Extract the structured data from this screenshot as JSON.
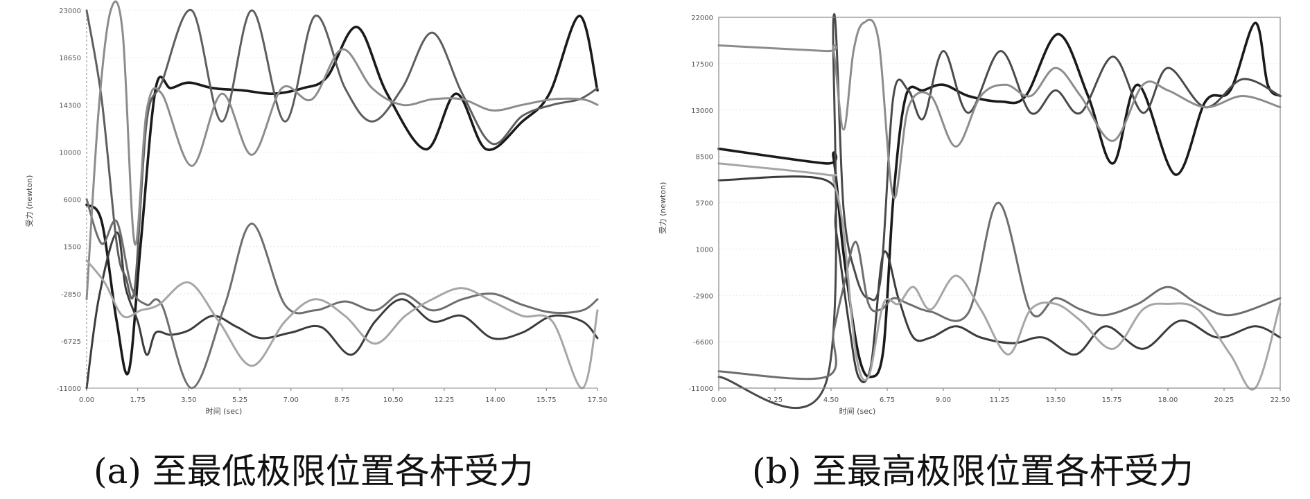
{
  "chart_data": [
    {
      "type": "line",
      "caption": "(a) 至最低极限位置各杆受力",
      "xlabel": "时间 (sec)",
      "ylabel": "受力 (newton)",
      "xlim": [
        0,
        17
      ],
      "ylim": [
        -11000,
        23000
      ],
      "x_ticks": [
        "0.00",
        "1.75",
        "3.50",
        "5.25",
        "7.00",
        "8.75",
        "10.50",
        "12.25",
        "14.00",
        "15.75",
        "17.50"
      ],
      "y_ticks": [
        "23000",
        "18650",
        "14300",
        "10000",
        "6000",
        "1500",
        "-2850",
        "-6725",
        "-11000"
      ],
      "series": [
        {
          "color": "#1a1a1a",
          "width": 3.6,
          "x": [
            0,
            0.5,
            1.0,
            1.4,
            1.8,
            2.3,
            2.8,
            3.4,
            4.2,
            5.2,
            6.2,
            7.2,
            8.0,
            9.0,
            10.0,
            11.3,
            12.3,
            13.3,
            14.5,
            15.4,
            16.4,
            17.0
          ],
          "y": [
            5500,
            4000,
            -5000,
            -9500,
            2000,
            16000,
            16000,
            16500,
            16000,
            15800,
            15500,
            16000,
            17000,
            21500,
            15500,
            10500,
            15500,
            10500,
            13000,
            15500,
            22500,
            15800
          ]
        },
        {
          "color": "#3c3c3c",
          "width": 3.0,
          "x": [
            0,
            0.4,
            1.0,
            1.3,
            1.7,
            2.0,
            2.3,
            2.8,
            3.4,
            4.2,
            5.0,
            5.8,
            6.8,
            7.8,
            8.8,
            9.6,
            10.5,
            11.5,
            12.5,
            13.5,
            14.5,
            15.5,
            16.5,
            17.0
          ],
          "y": [
            -11000,
            -3000,
            3000,
            -2000,
            -5000,
            -8000,
            -6000,
            -6200,
            -5800,
            -4500,
            -5500,
            -6500,
            -6000,
            -5500,
            -8000,
            -5000,
            -3000,
            -5000,
            -4500,
            -6500,
            -6000,
            -4500,
            -5000,
            -6500
          ]
        },
        {
          "color": "#5e5e5e",
          "width": 3.0,
          "x": [
            0,
            0.5,
            1.0,
            1.3,
            1.6,
            2.0,
            2.5,
            3.5,
            4.5,
            5.5,
            6.6,
            7.6,
            8.6,
            9.5,
            10.5,
            11.5,
            12.5,
            13.5,
            14.5,
            15.5,
            16.4,
            17.0
          ],
          "y": [
            23000,
            15000,
            2000,
            -1000,
            -2000,
            13000,
            16500,
            23000,
            13000,
            23000,
            13000,
            22500,
            16000,
            13000,
            16000,
            21000,
            15500,
            11000,
            13500,
            14500,
            15000,
            16000
          ]
        },
        {
          "color": "#6e6e6e",
          "width": 3.0,
          "x": [
            0,
            0.5,
            1.0,
            1.5,
            2.0,
            2.5,
            3.5,
            4.6,
            5.5,
            6.6,
            7.6,
            8.6,
            9.6,
            10.5,
            11.5,
            12.5,
            13.5,
            14.5,
            15.5,
            16.5,
            17.0
          ],
          "y": [
            6000,
            2000,
            4000,
            -2000,
            -3500,
            -3500,
            -11000,
            -3500,
            3800,
            -3500,
            -4000,
            -3200,
            -4000,
            -2500,
            -4000,
            -3000,
            -2500,
            -3500,
            -4200,
            -4000,
            -3000
          ]
        },
        {
          "color": "#8c8c8c",
          "width": 3.0,
          "x": [
            0,
            0.4,
            0.8,
            1.2,
            1.6,
            2.0,
            2.5,
            3.5,
            4.5,
            5.5,
            6.5,
            7.5,
            8.5,
            9.5,
            10.5,
            11.5,
            12.5,
            13.5,
            14.5,
            15.5,
            16.5,
            17.0
          ],
          "y": [
            -3000,
            14000,
            23000,
            21000,
            2000,
            14000,
            15500,
            9000,
            15500,
            10000,
            16000,
            15000,
            19500,
            16000,
            14500,
            15000,
            15000,
            14000,
            14500,
            15000,
            15000,
            14500
          ]
        },
        {
          "color": "#a6a6a6",
          "width": 3.0,
          "x": [
            0,
            0.6,
            1.2,
            1.8,
            2.4,
            3.4,
            4.4,
            5.5,
            6.6,
            7.6,
            8.6,
            9.6,
            10.6,
            11.5,
            12.5,
            13.5,
            14.5,
            15.5,
            16.5,
            17.0
          ],
          "y": [
            500,
            -1500,
            -4500,
            -4000,
            -3500,
            -1500,
            -5000,
            -9000,
            -5000,
            -3000,
            -4500,
            -7000,
            -4500,
            -3000,
            -2000,
            -3200,
            -4500,
            -5000,
            -11000,
            -4000
          ]
        }
      ]
    },
    {
      "type": "line",
      "caption": "(b) 至最高极限位置各杆受力",
      "xlabel": "时间 (sec)",
      "ylabel": "受力 (newton)",
      "xlim": [
        0,
        22.5
      ],
      "ylim": [
        -11000,
        22000
      ],
      "x_ticks": [
        "0.00",
        "2.25",
        "4.50",
        "6.75",
        "9.00",
        "11.25",
        "13.50",
        "15.75",
        "18.00",
        "20.25",
        "22.50"
      ],
      "y_ticks": [
        "22000",
        "17500",
        "13000",
        "8500",
        "5700",
        "1000",
        "-2900",
        "-6600",
        "-11000"
      ],
      "series": [
        {
          "color": "#1a1a1a",
          "width": 3.6,
          "x": [
            0,
            4.3,
            4.6,
            5.0,
            5.6,
            6.1,
            6.6,
            7.0,
            7.5,
            8.2,
            9.0,
            10.0,
            11.3,
            12.3,
            13.6,
            14.8,
            15.8,
            16.8,
            18.3,
            19.5,
            20.5,
            21.5,
            22.0,
            22.5
          ],
          "y": [
            10300,
            9000,
            9500,
            1000,
            -8000,
            -10000,
            -7500,
            6000,
            15000,
            15500,
            16000,
            15000,
            14500,
            15000,
            20500,
            15000,
            9000,
            16000,
            8000,
            14500,
            15500,
            21500,
            16000,
            15000
          ]
        },
        {
          "color": "#3c3c3c",
          "width": 3.0,
          "x": [
            0,
            4.3,
            4.7,
            5.2,
            5.6,
            6.1,
            6.6,
            7.2,
            7.8,
            8.5,
            9.5,
            10.5,
            11.8,
            13.0,
            14.3,
            15.5,
            17.0,
            18.5,
            20.0,
            21.5,
            22.5
          ],
          "y": [
            7500,
            7500,
            3000,
            -5000,
            -10000,
            -9000,
            1000,
            -3000,
            -6500,
            -6500,
            -5500,
            -6500,
            -7000,
            -6500,
            -8000,
            -5500,
            -7500,
            -5000,
            -6500,
            -5500,
            -6500
          ]
        },
        {
          "color": "#4a4a4a",
          "width": 3.0,
          "x": [
            0,
            4.3,
            4.6,
            5.0,
            5.5,
            6.0,
            6.5,
            7.0,
            7.6,
            8.2,
            9.0,
            10.0,
            11.3,
            12.5,
            13.5,
            14.5,
            15.8,
            17.0,
            18.0,
            19.5,
            21.0,
            22.5
          ],
          "y": [
            -10000,
            -10500,
            22000,
            5000,
            -1000,
            -3000,
            -1000,
            15000,
            15500,
            13000,
            19000,
            13500,
            19000,
            13500,
            15500,
            13500,
            18500,
            13500,
            17500,
            14000,
            16500,
            15000
          ]
        },
        {
          "color": "#6e6e6e",
          "width": 3.0,
          "x": [
            0,
            4.3,
            4.6,
            5.0,
            5.5,
            6.0,
            6.5,
            7.0,
            7.6,
            8.5,
            10.0,
            11.2,
            12.5,
            13.5,
            14.5,
            15.5,
            16.8,
            18.0,
            19.2,
            20.5,
            22.5
          ],
          "y": [
            -9500,
            -10000,
            -6000,
            -2000,
            2000,
            -3500,
            -4000,
            -3000,
            -3500,
            -4200,
            -4300,
            5500,
            -4200,
            -3000,
            -4000,
            -4500,
            -3500,
            -2000,
            -3500,
            -4500,
            -3000
          ]
        },
        {
          "color": "#8c8c8c",
          "width": 3.0,
          "x": [
            0,
            4.3,
            4.6,
            5.0,
            5.4,
            5.8,
            6.4,
            7.0,
            7.6,
            8.5,
            9.5,
            10.5,
            11.5,
            12.5,
            13.5,
            14.5,
            15.8,
            17.0,
            18.0,
            19.5,
            21.0,
            22.5
          ],
          "y": [
            19500,
            19000,
            19000,
            12000,
            19000,
            21500,
            20000,
            6000,
            14000,
            15000,
            10500,
            15000,
            16000,
            15000,
            17500,
            15000,
            11000,
            16000,
            15500,
            14000,
            15000,
            14000
          ]
        },
        {
          "color": "#a6a6a6",
          "width": 3.0,
          "x": [
            0,
            4.3,
            4.6,
            5.0,
            5.5,
            6.0,
            6.6,
            7.2,
            7.8,
            8.5,
            9.5,
            10.5,
            11.6,
            12.5,
            13.5,
            14.5,
            15.8,
            17.0,
            18.0,
            19.2,
            20.5,
            21.5,
            22.5
          ],
          "y": [
            9000,
            8000,
            7500,
            3000,
            -8000,
            -10000,
            -3500,
            -3500,
            -2000,
            -4000,
            -1000,
            -4000,
            -8000,
            -4000,
            -3500,
            -5000,
            -7500,
            -4000,
            -3500,
            -4000,
            -8000,
            -11000,
            -3500
          ]
        }
      ]
    }
  ]
}
